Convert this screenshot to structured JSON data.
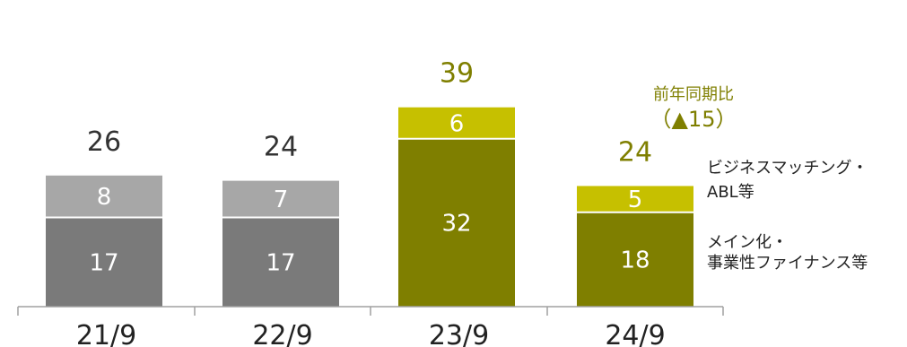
{
  "chart_data": {
    "type": "bar",
    "stacked": true,
    "categories": [
      "21/9",
      "22/9",
      "23/9",
      "24/9"
    ],
    "series": [
      {
        "name": "メイン化・事業性ファイナンス等",
        "values": [
          17,
          17,
          32,
          18
        ]
      },
      {
        "name": "ビジネスマッチング・ABL等",
        "values": [
          8,
          7,
          6,
          5
        ]
      }
    ],
    "totals": [
      26,
      24,
      39,
      24
    ],
    "highlight_categories": [
      "23/9",
      "24/9"
    ],
    "ylim": [
      0,
      40
    ],
    "grid": false,
    "legend_placement": "right",
    "colors": {
      "base_gray": "#7a7a7a",
      "top_gray": "#a7a7a7",
      "base_olive": "#7f7f00",
      "top_olive": "#c6c000",
      "total_dark": "#333333",
      "total_olive": "#7f7f00",
      "axis": "#a0a0a0",
      "segment_text": "#ffffff"
    },
    "annotation": {
      "title": "前年同期比",
      "value": "（▲15）",
      "color": "#7f7f00"
    },
    "legend_labels": {
      "top_line1": "ビジネスマッチング・",
      "top_line2": "ABL等",
      "bottom_line1": "メイン化・",
      "bottom_line2": "事業性ファイナンス等"
    }
  }
}
